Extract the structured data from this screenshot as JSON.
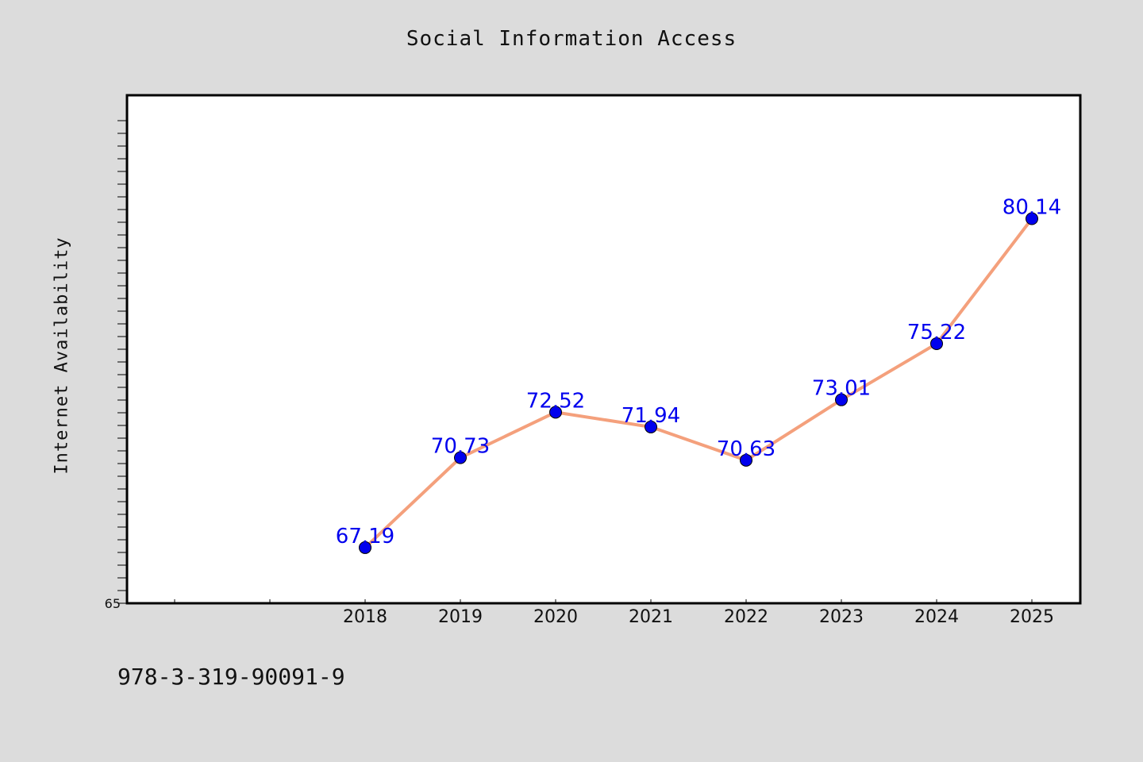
{
  "chart_data": {
    "type": "line",
    "title": "Social Information Access",
    "xlabel": "",
    "ylabel": "Internet Availability",
    "categories": [
      "2018",
      "2019",
      "2020",
      "2021",
      "2022",
      "2023",
      "2024",
      "2025"
    ],
    "values": [
      67.19,
      70.73,
      72.52,
      71.94,
      70.63,
      73.01,
      75.22,
      80.14
    ],
    "data_labels": [
      "67.19",
      "70.73",
      "72.52",
      "71.94",
      "70.63",
      "73.01",
      "75.22",
      "80.14"
    ],
    "y_tick_label": "65",
    "ylim": [
      65,
      85
    ],
    "x_extra_minor_ticks": 2,
    "grid": false,
    "legend": "none",
    "line_color": "#f4a07c",
    "marker_color": "#0000ee",
    "label_color": "#0000ee"
  },
  "footer": {
    "isbn": "978-3-319-90091-9"
  }
}
